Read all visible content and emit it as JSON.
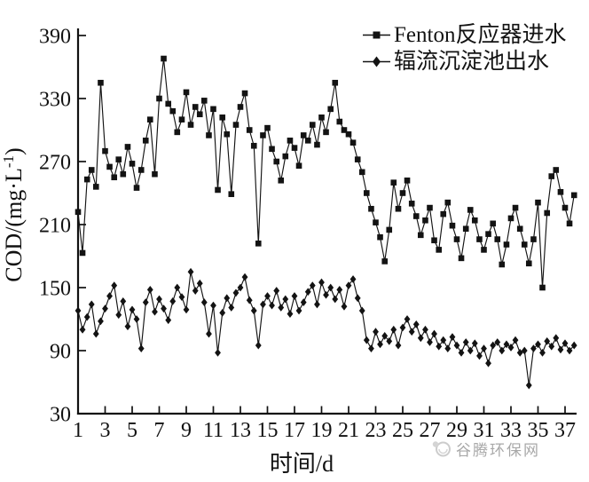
{
  "chart_data": {
    "type": "line",
    "title": "",
    "xlabel": "时间/d",
    "ylabel": "COD/(mg·L⁻¹)",
    "xlim": [
      1,
      38
    ],
    "ylim": [
      30,
      390
    ],
    "x_ticks": [
      1,
      3,
      5,
      7,
      9,
      11,
      13,
      15,
      17,
      19,
      21,
      23,
      25,
      27,
      29,
      31,
      33,
      35,
      37
    ],
    "y_ticks": [
      30,
      90,
      150,
      210,
      270,
      330,
      390
    ],
    "grid": false,
    "legend_position": "top-right",
    "x": [
      1,
      1.33,
      1.67,
      2,
      2.33,
      2.67,
      3,
      3.33,
      3.67,
      4,
      4.33,
      4.67,
      5,
      5.33,
      5.67,
      6,
      6.33,
      6.67,
      7,
      7.33,
      7.67,
      8,
      8.33,
      8.67,
      9,
      9.33,
      9.67,
      10,
      10.33,
      10.67,
      11,
      11.33,
      11.67,
      12,
      12.33,
      12.67,
      13,
      13.33,
      13.67,
      14,
      14.33,
      14.67,
      15,
      15.33,
      15.67,
      16,
      16.33,
      16.67,
      17,
      17.33,
      17.67,
      18,
      18.33,
      18.67,
      19,
      19.33,
      19.67,
      20,
      20.33,
      20.67,
      21,
      21.33,
      21.67,
      22,
      22.33,
      22.67,
      23,
      23.33,
      23.67,
      24,
      24.33,
      24.67,
      25,
      25.33,
      25.67,
      26,
      26.33,
      26.67,
      27,
      27.33,
      27.67,
      28,
      28.33,
      28.67,
      29,
      29.33,
      29.67,
      30,
      30.33,
      30.67,
      31,
      31.33,
      31.67,
      32,
      32.33,
      32.67,
      33,
      33.33,
      33.67,
      34,
      34.33,
      34.67,
      35,
      35.33,
      35.67,
      36,
      36.33,
      36.67,
      37,
      37.33,
      37.67
    ],
    "series": [
      {
        "name": "Fenton反应器进水",
        "marker": "square",
        "color": "#131313",
        "values": [
          222,
          183,
          253,
          262,
          246,
          345,
          280,
          265,
          255,
          272,
          258,
          284,
          268,
          245,
          262,
          290,
          310,
          258,
          330,
          368,
          325,
          318,
          298,
          310,
          336,
          305,
          322,
          315,
          328,
          295,
          320,
          243,
          312,
          296,
          239,
          305,
          322,
          335,
          300,
          285,
          192,
          295,
          302,
          282,
          270,
          252,
          275,
          290,
          283,
          266,
          295,
          290,
          305,
          286,
          312,
          298,
          320,
          345,
          308,
          300,
          296,
          288,
          272,
          260,
          240,
          225,
          212,
          198,
          175,
          205,
          250,
          225,
          240,
          252,
          230,
          218,
          200,
          214,
          226,
          195,
          186,
          220,
          231,
          209,
          196,
          178,
          206,
          224,
          214,
          196,
          186,
          201,
          211,
          196,
          172,
          191,
          216,
          226,
          206,
          191,
          173,
          196,
          231,
          150,
          221,
          256,
          262,
          241,
          226,
          211,
          238
        ]
      },
      {
        "name": "辐流沉淀池出水",
        "marker": "diamond",
        "color": "#131313",
        "values": [
          128,
          110,
          122,
          134,
          106,
          118,
          130,
          142,
          152,
          124,
          137,
          113,
          129,
          120,
          92,
          136,
          148,
          127,
          139,
          130,
          119,
          137,
          150,
          141,
          129,
          165,
          147,
          154,
          136,
          106,
          133,
          88,
          126,
          140,
          131,
          145,
          150,
          160,
          138,
          128,
          95,
          134,
          142,
          133,
          147,
          131,
          139,
          125,
          142,
          128,
          136,
          146,
          152,
          134,
          155,
          143,
          150,
          139,
          148,
          132,
          152,
          158,
          140,
          128,
          100,
          92,
          108,
          96,
          104,
          99,
          110,
          95,
          112,
          120,
          108,
          115,
          102,
          110,
          98,
          106,
          94,
          100,
          92,
          103,
          95,
          88,
          98,
          90,
          97,
          85,
          92,
          78,
          95,
          98,
          90,
          96,
          93,
          100,
          88,
          90,
          57,
          92,
          96,
          88,
          99,
          94,
          102,
          91,
          97,
          90,
          95
        ]
      }
    ]
  },
  "watermark": {
    "text": "谷腾环保网",
    "color": "#a8a8a8"
  }
}
